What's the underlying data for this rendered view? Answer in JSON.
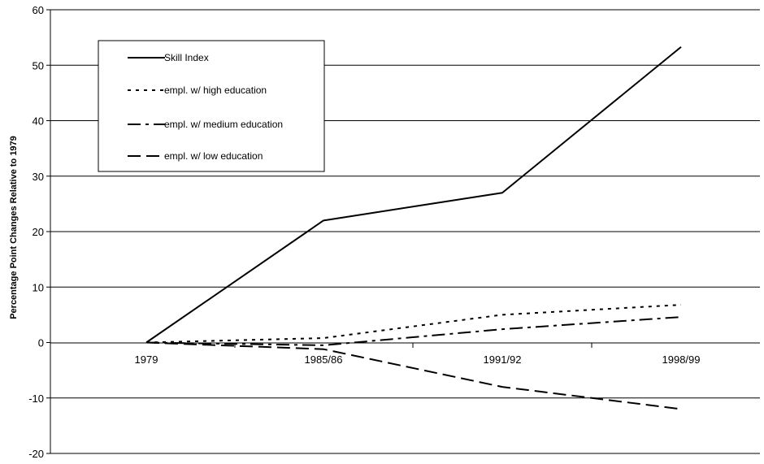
{
  "chart_data": {
    "type": "line",
    "title": "",
    "xlabel": "",
    "ylabel": "Percentage Point Changes Relative to 1979",
    "categories": [
      "1979",
      "1985/86",
      "1991/92",
      "1998/99"
    ],
    "ylim": [
      -20,
      60
    ],
    "yticks": [
      -20,
      -10,
      0,
      10,
      20,
      30,
      40,
      50,
      60
    ],
    "ytick_labels": [
      "-20",
      "-10",
      "0",
      "10",
      "20",
      "30",
      "40",
      "50",
      "60"
    ],
    "grid": true,
    "legend_position": "top-left",
    "series": [
      {
        "name": "Skill Index",
        "style": "solid",
        "color": "#000000",
        "values": [
          0,
          22,
          27,
          53.3
        ]
      },
      {
        "name": "empl. w/ high education",
        "style": "dotted",
        "color": "#000000",
        "values": [
          0,
          0.8,
          5,
          6.8
        ]
      },
      {
        "name": "empl. w/ medium education",
        "style": "dashdot",
        "color": "#000000",
        "values": [
          0,
          -0.5,
          2.4,
          4.6
        ]
      },
      {
        "name": "empl. w/ low education",
        "style": "dashed",
        "color": "#000000",
        "values": [
          0,
          -1.2,
          -8,
          -12
        ]
      }
    ]
  }
}
